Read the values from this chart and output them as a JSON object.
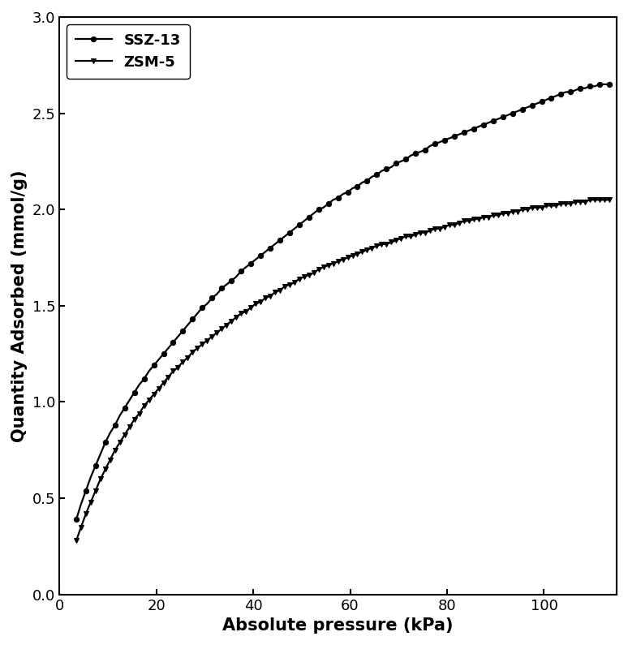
{
  "title": "",
  "xlabel": "Absolute pressure (kPa)",
  "ylabel": "Quantity Adsorbed (mmol/g)",
  "xlim": [
    0,
    115
  ],
  "ylim": [
    0.0,
    3.0
  ],
  "xticks": [
    0,
    20,
    40,
    60,
    80,
    100
  ],
  "yticks": [
    0.0,
    0.5,
    1.0,
    1.5,
    2.0,
    2.5,
    3.0
  ],
  "background_color": "#ffffff",
  "line_color": "#000000",
  "series": [
    {
      "label": "SSZ-13",
      "marker": "o",
      "markersize": 4.5,
      "markevery": 2,
      "x": [
        3.5,
        4.5,
        5.5,
        6.5,
        7.5,
        8.5,
        9.5,
        10.5,
        11.5,
        12.5,
        13.5,
        14.5,
        15.5,
        16.5,
        17.5,
        18.5,
        19.5,
        20.5,
        21.5,
        22.5,
        23.5,
        24.5,
        25.5,
        26.5,
        27.5,
        28.5,
        29.5,
        30.5,
        31.5,
        32.5,
        33.5,
        34.5,
        35.5,
        36.5,
        37.5,
        38.5,
        39.5,
        40.5,
        41.5,
        42.5,
        43.5,
        44.5,
        45.5,
        46.5,
        47.5,
        48.5,
        49.5,
        50.5,
        51.5,
        52.5,
        53.5,
        54.5,
        55.5,
        56.5,
        57.5,
        58.5,
        59.5,
        60.5,
        61.5,
        62.5,
        63.5,
        64.5,
        65.5,
        66.5,
        67.5,
        68.5,
        69.5,
        70.5,
        71.5,
        72.5,
        73.5,
        74.5,
        75.5,
        76.5,
        77.5,
        78.5,
        79.5,
        80.5,
        81.5,
        82.5,
        83.5,
        84.5,
        85.5,
        86.5,
        87.5,
        88.5,
        89.5,
        90.5,
        91.5,
        92.5,
        93.5,
        94.5,
        95.5,
        96.5,
        97.5,
        98.5,
        99.5,
        100.5,
        101.5,
        102.5,
        103.5,
        104.5,
        105.5,
        106.5,
        107.5,
        108.5,
        109.5,
        110.5,
        111.5,
        112.5,
        113.5
      ],
      "y": [
        0.39,
        0.47,
        0.54,
        0.61,
        0.67,
        0.73,
        0.79,
        0.84,
        0.88,
        0.93,
        0.97,
        1.01,
        1.05,
        1.09,
        1.12,
        1.16,
        1.19,
        1.22,
        1.25,
        1.28,
        1.31,
        1.34,
        1.37,
        1.4,
        1.43,
        1.46,
        1.49,
        1.51,
        1.54,
        1.56,
        1.59,
        1.61,
        1.63,
        1.65,
        1.68,
        1.7,
        1.72,
        1.74,
        1.76,
        1.78,
        1.8,
        1.82,
        1.84,
        1.86,
        1.88,
        1.9,
        1.92,
        1.94,
        1.96,
        1.98,
        2.0,
        2.01,
        2.03,
        2.05,
        2.06,
        2.08,
        2.09,
        2.11,
        2.12,
        2.14,
        2.15,
        2.17,
        2.18,
        2.2,
        2.21,
        2.22,
        2.24,
        2.25,
        2.26,
        2.28,
        2.29,
        2.3,
        2.31,
        2.33,
        2.34,
        2.35,
        2.36,
        2.37,
        2.38,
        2.39,
        2.4,
        2.41,
        2.42,
        2.43,
        2.44,
        2.45,
        2.46,
        2.47,
        2.48,
        2.49,
        2.5,
        2.51,
        2.52,
        2.53,
        2.54,
        2.55,
        2.56,
        2.57,
        2.58,
        2.59,
        2.6,
        2.61,
        2.61,
        2.62,
        2.63,
        2.63,
        2.64,
        2.64,
        2.65,
        2.65,
        2.65
      ]
    },
    {
      "label": "ZSM-5",
      "marker": "v",
      "markersize": 5,
      "markevery": 1,
      "x": [
        3.5,
        4.5,
        5.5,
        6.5,
        7.5,
        8.5,
        9.5,
        10.5,
        11.5,
        12.5,
        13.5,
        14.5,
        15.5,
        16.5,
        17.5,
        18.5,
        19.5,
        20.5,
        21.5,
        22.5,
        23.5,
        24.5,
        25.5,
        26.5,
        27.5,
        28.5,
        29.5,
        30.5,
        31.5,
        32.5,
        33.5,
        34.5,
        35.5,
        36.5,
        37.5,
        38.5,
        39.5,
        40.5,
        41.5,
        42.5,
        43.5,
        44.5,
        45.5,
        46.5,
        47.5,
        48.5,
        49.5,
        50.5,
        51.5,
        52.5,
        53.5,
        54.5,
        55.5,
        56.5,
        57.5,
        58.5,
        59.5,
        60.5,
        61.5,
        62.5,
        63.5,
        64.5,
        65.5,
        66.5,
        67.5,
        68.5,
        69.5,
        70.5,
        71.5,
        72.5,
        73.5,
        74.5,
        75.5,
        76.5,
        77.5,
        78.5,
        79.5,
        80.5,
        81.5,
        82.5,
        83.5,
        84.5,
        85.5,
        86.5,
        87.5,
        88.5,
        89.5,
        90.5,
        91.5,
        92.5,
        93.5,
        94.5,
        95.5,
        96.5,
        97.5,
        98.5,
        99.5,
        100.5,
        101.5,
        102.5,
        103.5,
        104.5,
        105.5,
        106.5,
        107.5,
        108.5,
        109.5,
        110.5,
        111.5,
        112.5,
        113.5
      ],
      "y": [
        0.28,
        0.35,
        0.42,
        0.48,
        0.54,
        0.6,
        0.65,
        0.7,
        0.75,
        0.79,
        0.83,
        0.87,
        0.91,
        0.94,
        0.98,
        1.01,
        1.04,
        1.07,
        1.1,
        1.13,
        1.16,
        1.18,
        1.21,
        1.23,
        1.26,
        1.28,
        1.3,
        1.32,
        1.34,
        1.36,
        1.38,
        1.4,
        1.42,
        1.44,
        1.46,
        1.47,
        1.49,
        1.51,
        1.52,
        1.54,
        1.55,
        1.57,
        1.58,
        1.6,
        1.61,
        1.62,
        1.64,
        1.65,
        1.66,
        1.67,
        1.69,
        1.7,
        1.71,
        1.72,
        1.73,
        1.74,
        1.75,
        1.76,
        1.77,
        1.78,
        1.79,
        1.8,
        1.81,
        1.82,
        1.82,
        1.83,
        1.84,
        1.85,
        1.86,
        1.86,
        1.87,
        1.88,
        1.88,
        1.89,
        1.9,
        1.9,
        1.91,
        1.92,
        1.92,
        1.93,
        1.94,
        1.94,
        1.95,
        1.95,
        1.96,
        1.96,
        1.97,
        1.97,
        1.98,
        1.98,
        1.99,
        1.99,
        2.0,
        2.0,
        2.01,
        2.01,
        2.01,
        2.02,
        2.02,
        2.02,
        2.03,
        2.03,
        2.03,
        2.04,
        2.04,
        2.04,
        2.05,
        2.05,
        2.05,
        2.05,
        2.05
      ]
    }
  ],
  "legend_fontsize": 13,
  "axis_label_fontsize": 15,
  "tick_fontsize": 13,
  "linewidth": 1.6
}
